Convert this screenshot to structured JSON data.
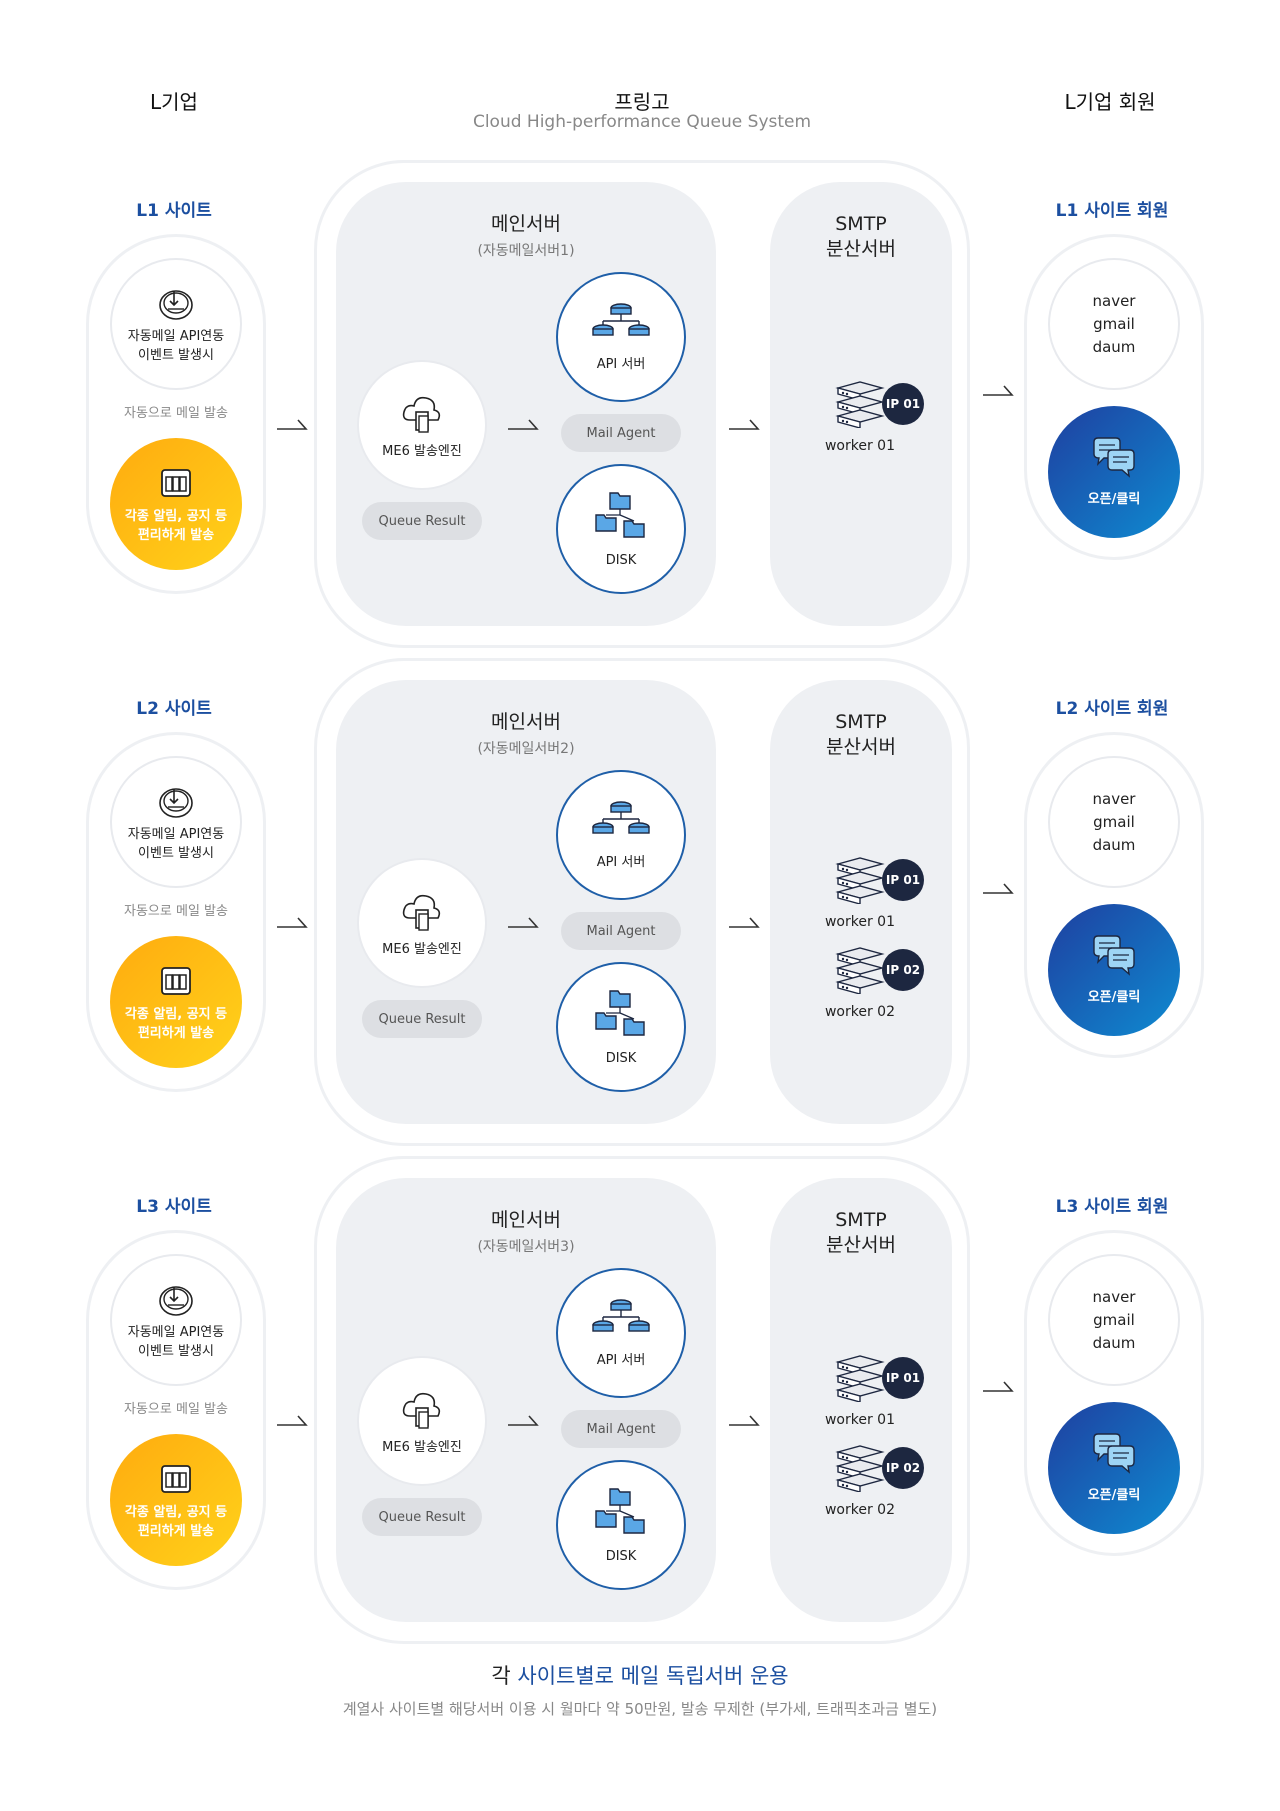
{
  "header": {
    "left": "L기업",
    "center": "프링고",
    "center_sub": "Cloud High-performance Queue System",
    "right": "L기업 회원"
  },
  "rows": [
    {
      "site_label": "L1 사이트",
      "event_line1": "자동메일 API연동",
      "event_line2": "이벤트 발생시",
      "auto_send": "자동으로 메일 발송",
      "notice_line1": "각종 알림, 공지 등",
      "notice_line2": "편리하게 발송",
      "main_title": "메인서버",
      "main_sub": "(자동메일서버1)",
      "engine": "ME6 발송엔진",
      "queue_result": "Queue Result",
      "api_server": "API 서버",
      "mail_agent": "Mail Agent",
      "disk": "DISK",
      "smtp_line1": "SMTP",
      "smtp_line2": "분산서버",
      "workers": [
        {
          "label": "worker 01",
          "ip": "IP 01"
        }
      ],
      "member_label": "L1 사이트 회원",
      "providers": [
        "naver",
        "gmail",
        "daum"
      ],
      "open_click": "오픈/클릭"
    },
    {
      "site_label": "L2 사이트",
      "event_line1": "자동메일 API연동",
      "event_line2": "이벤트 발생시",
      "auto_send": "자동으로 메일 발송",
      "notice_line1": "각종 알림, 공지 등",
      "notice_line2": "편리하게 발송",
      "main_title": "메인서버",
      "main_sub": "(자동메일서버2)",
      "engine": "ME6 발송엔진",
      "queue_result": "Queue Result",
      "api_server": "API 서버",
      "mail_agent": "Mail Agent",
      "disk": "DISK",
      "smtp_line1": "SMTP",
      "smtp_line2": "분산서버",
      "workers": [
        {
          "label": "worker 01",
          "ip": "IP 01"
        },
        {
          "label": "worker 02",
          "ip": "IP 02"
        }
      ],
      "member_label": "L2 사이트 회원",
      "providers": [
        "naver",
        "gmail",
        "daum"
      ],
      "open_click": "오픈/클릭"
    },
    {
      "site_label": "L3 사이트",
      "event_line1": "자동메일 API연동",
      "event_line2": "이벤트 발생시",
      "auto_send": "자동으로 메일 발송",
      "notice_line1": "각종 알림, 공지 등",
      "notice_line2": "편리하게 발송",
      "main_title": "메인서버",
      "main_sub": "(자동메일서버3)",
      "engine": "ME6 발송엔진",
      "queue_result": "Queue Result",
      "api_server": "API 서버",
      "mail_agent": "Mail Agent",
      "disk": "DISK",
      "smtp_line1": "SMTP",
      "smtp_line2": "분산서버",
      "workers": [
        {
          "label": "worker 01",
          "ip": "IP 01"
        },
        {
          "label": "worker 02",
          "ip": "IP 02"
        }
      ],
      "member_label": "L3 사이트 회원",
      "providers": [
        "naver",
        "gmail",
        "daum"
      ],
      "open_click": "오픈/클릭"
    }
  ],
  "footer": {
    "title_prefix": "각 ",
    "title_highlight": "사이트별로 메일 독립서버 운용",
    "subtitle": "계열사 사이트별 해당서버 이용 시 월마다 약 50만원, 발송 무제한 (부가세, 트래픽초과금 별도)"
  },
  "colors": {
    "accent_blue": "#1c4fa0",
    "orange": "#ffb20f",
    "navy": "#1d2740",
    "panel_gray": "#eef0f3"
  },
  "icons": {
    "event": "touch-icon",
    "notice": "document-icon",
    "engine": "cloud-document-icon",
    "api": "database-network-icon",
    "disk": "folder-tree-icon",
    "worker": "server-stack-icon",
    "open_click": "chat-bubbles-icon"
  }
}
